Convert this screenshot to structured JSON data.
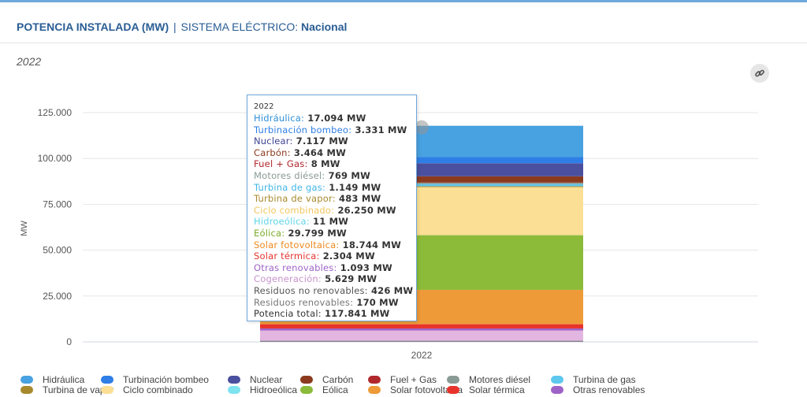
{
  "header": {
    "title": "POTENCIA INSTALADA (MW)",
    "separator": "|",
    "system_label": "SISTEMA ELÉCTRICO:",
    "system_value": "Nacional"
  },
  "icons": {
    "link": "link-icon"
  },
  "chart_data": {
    "type": "bar",
    "stacked": true,
    "title": "2022",
    "ylabel": "MW",
    "xlabel": "",
    "categories": [
      "2022"
    ],
    "ylim": [
      0,
      125000
    ],
    "yticks": [
      0,
      25000,
      50000,
      75000,
      100000,
      125000
    ],
    "ytick_labels": [
      "0",
      "25.000",
      "50.000",
      "75.000",
      "100.000",
      "125.000"
    ],
    "grid": true,
    "legend_position": "bottom",
    "series": [
      {
        "name": "Hidráulica",
        "value": 17094,
        "color": "#48a1e0"
      },
      {
        "name": "Turbinación bombeo",
        "value": 3331,
        "color": "#2e7ee6"
      },
      {
        "name": "Nuclear",
        "value": 7117,
        "color": "#4a4f9e"
      },
      {
        "name": "Carbón",
        "value": 3464,
        "color": "#8b3a1e"
      },
      {
        "name": "Fuel + Gas",
        "value": 8,
        "color": "#b0282c"
      },
      {
        "name": "Motores diésel",
        "value": 769,
        "color": "#8a9a94"
      },
      {
        "name": "Turbina de gas",
        "value": 1149,
        "color": "#5ec7ee"
      },
      {
        "name": "Turbina de vapor",
        "value": 483,
        "color": "#a88a2e"
      },
      {
        "name": "Ciclo combinado",
        "value": 26250,
        "color": "#fbdf94"
      },
      {
        "name": "Hidroeólica",
        "value": 11,
        "color": "#7fe3f0"
      },
      {
        "name": "Eólica",
        "value": 29799,
        "color": "#8cbb3a"
      },
      {
        "name": "Solar fotovoltaica",
        "value": 18744,
        "color": "#ee9a38"
      },
      {
        "name": "Solar térmica",
        "value": 2304,
        "color": "#e8332c"
      },
      {
        "name": "Otras renovables",
        "value": 1093,
        "color": "#9e63c8"
      },
      {
        "name": "Cogeneración",
        "value": 5629,
        "color": "#e2b6e0"
      },
      {
        "name": "Residuos no renovables",
        "value": 426,
        "color": "#6b6b6b"
      },
      {
        "name": "Residuos renovables",
        "value": 170,
        "color": "#9a9a9a"
      }
    ]
  },
  "tooltip": {
    "year": "2022",
    "rows": [
      {
        "label": "Hidráulica:",
        "value": "17.094 MW",
        "color": "#2f8fd8"
      },
      {
        "label": "Turbinación bombeo:",
        "value": "3.331 MW",
        "color": "#2e7ee6"
      },
      {
        "label": "Nuclear:",
        "value": "7.117 MW",
        "color": "#3f4494"
      },
      {
        "label": "Carbón:",
        "value": "3.464 MW",
        "color": "#8b3a1e"
      },
      {
        "label": "Fuel + Gas:",
        "value": "8 MW",
        "color": "#b0282c"
      },
      {
        "label": "Motores diésel:",
        "value": "769 MW",
        "color": "#8a9a94"
      },
      {
        "label": "Turbina de gas:",
        "value": "1.149 MW",
        "color": "#3fb6e6"
      },
      {
        "label": "Turbina de vapor:",
        "value": "483 MW",
        "color": "#a88a2e"
      },
      {
        "label": "Ciclo combinado:",
        "value": "26.250 MW",
        "color": "#f2c75e"
      },
      {
        "label": "Hidroeólica:",
        "value": "11 MW",
        "color": "#5fd5e8"
      },
      {
        "label": "Eólica:",
        "value": "29.799 MW",
        "color": "#7aab2a"
      },
      {
        "label": "Solar fotovoltaica:",
        "value": "18.744 MW",
        "color": "#ee8a1e"
      },
      {
        "label": "Solar térmica:",
        "value": "2.304 MW",
        "color": "#e8332c"
      },
      {
        "label": "Otras renovables:",
        "value": "1.093 MW",
        "color": "#9e63c8"
      },
      {
        "label": "Cogeneración:",
        "value": "5.629 MW",
        "color": "#c892cc"
      },
      {
        "label": "Residuos no renovables:",
        "value": "426 MW",
        "color": "#555555"
      },
      {
        "label": "Residuos renovables:",
        "value": "170 MW",
        "color": "#777777"
      },
      {
        "label": "Potencia total:",
        "value": "117.841 MW",
        "color": "#333333"
      }
    ]
  },
  "legend": [
    {
      "label": "Hidráulica",
      "color": "#48a1e0"
    },
    {
      "label": "Turbinación bombeo",
      "color": "#2e7ee6"
    },
    {
      "label": "Nuclear",
      "color": "#4a4f9e"
    },
    {
      "label": "Carbón",
      "color": "#8b3a1e"
    },
    {
      "label": "Fuel + Gas",
      "color": "#b0282c"
    },
    {
      "label": "Motores diésel",
      "color": "#8a9a94"
    },
    {
      "label": "Turbina de gas",
      "color": "#5ec7ee"
    },
    {
      "label": "Turbina de vapor",
      "color": "#a88a2e"
    },
    {
      "label": "Ciclo combinado",
      "color": "#fbdf94"
    },
    {
      "label": "Hidroeólica",
      "color": "#7fe3f0"
    },
    {
      "label": "Eólica",
      "color": "#8cbb3a"
    },
    {
      "label": "Solar fotovoltaica",
      "color": "#ee9a38"
    },
    {
      "label": "Solar térmica",
      "color": "#e8332c"
    },
    {
      "label": "Otras renovables",
      "color": "#9e63c8"
    }
  ]
}
